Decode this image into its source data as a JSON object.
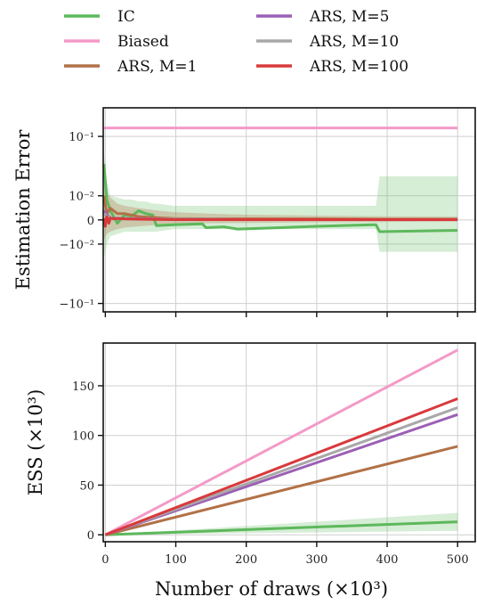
{
  "legend": [
    {
      "label": "IC",
      "color": "#5db85b"
    },
    {
      "label": "Biased",
      "color": "#f39ac7"
    },
    {
      "label": "ARS, M=1",
      "color": "#b27148"
    },
    {
      "label": "ARS, M=5",
      "color": "#9b5fb5"
    },
    {
      "label": "ARS, M=10",
      "color": "#a8a8a8"
    },
    {
      "label": "ARS, M=100",
      "color": "#d9393c"
    }
  ],
  "chart_data": [
    {
      "type": "line",
      "ylabel": "Estimation Error",
      "yscale": "symlog",
      "yticks": [
        {
          "value": 0.1,
          "label": "10⁻¹"
        },
        {
          "value": 0.01,
          "label": "10⁻²"
        },
        {
          "value": 0,
          "label": "0"
        },
        {
          "value": -0.01,
          "label": "−10⁻²"
        },
        {
          "value": -0.1,
          "label": "−10⁻¹"
        }
      ],
      "xlim": [
        0,
        525
      ],
      "grid": true,
      "series": [
        {
          "name": "IC",
          "x": [
            1,
            5,
            10,
            20,
            30,
            40,
            50,
            60,
            70,
            75,
            100,
            140,
            145,
            170,
            190,
            250,
            300,
            380,
            385,
            390,
            500
          ],
          "y": [
            0.04,
            0.008,
            0.003,
            -0.001,
            0.0015,
            0.0012,
            0.003,
            0.002,
            0.0015,
            -0.0018,
            -0.0015,
            -0.0012,
            -0.0025,
            -0.0022,
            -0.003,
            -0.0025,
            -0.002,
            -0.0015,
            -0.0015,
            -0.004,
            -0.0035
          ],
          "band_low": [
            -0.02,
            -0.01,
            -0.006,
            -0.005,
            -0.004,
            -0.004,
            -0.004,
            -0.004,
            -0.004,
            -0.004,
            -0.003,
            -0.003,
            -0.003,
            -0.003,
            -0.003,
            -0.003,
            -0.003,
            -0.003,
            -0.003,
            -0.015,
            -0.015
          ],
          "band_high": [
            0.06,
            0.02,
            0.01,
            0.009,
            0.008,
            0.008,
            0.007,
            0.007,
            0.006,
            0.006,
            0.005,
            0.005,
            0.005,
            0.005,
            0.005,
            0.005,
            0.005,
            0.005,
            0.005,
            0.025,
            0.025
          ]
        },
        {
          "name": "Biased",
          "x": [
            0,
            500
          ],
          "y": [
            0.13,
            0.13
          ]
        },
        {
          "name": "ARS, M=1",
          "x": [
            1,
            5,
            10,
            20,
            30,
            50,
            80,
            100,
            150,
            200,
            300,
            400,
            500
          ],
          "y": [
            0.01,
            0.002,
            0.004,
            0.002,
            0.002,
            0.001,
            0.0006,
            0.0004,
            0.0003,
            0.0003,
            0.0003,
            0.0002,
            0.0002
          ],
          "band_low": [
            -0.008,
            -0.005,
            -0.004,
            -0.003,
            -0.0025,
            -0.002,
            -0.0015,
            -0.0012,
            -0.001,
            -0.0009,
            -0.0007,
            -0.0006,
            -0.0005
          ],
          "band_high": [
            0.02,
            0.012,
            0.009,
            0.006,
            0.005,
            0.004,
            0.003,
            0.0025,
            0.002,
            0.0016,
            0.0013,
            0.0011,
            0.001
          ]
        },
        {
          "name": "ARS, M=5",
          "x": [
            1,
            10,
            30,
            60,
            100,
            200,
            300,
            400,
            500
          ],
          "y": [
            0.003,
            0.0005,
            0.0004,
            0.0003,
            0.0002,
            0.0001,
            0.0001,
            0.0001,
            0.0001
          ]
        },
        {
          "name": "ARS, M=10",
          "x": [
            1,
            10,
            30,
            60,
            100,
            200,
            300,
            400,
            500
          ],
          "y": [
            0.002,
            0.0003,
            0.0003,
            0.0002,
            0.0002,
            0.0001,
            0.0001,
            0.0001,
            0.0001
          ]
        },
        {
          "name": "ARS, M=100",
          "x": [
            1,
            3,
            5,
            8,
            10,
            15,
            20,
            30,
            50,
            100,
            200,
            300,
            400,
            500
          ],
          "y": [
            0.0005,
            -0.002,
            0.001,
            -0.001,
            0.0006,
            0.0003,
            0.0004,
            0.0003,
            0.0002,
            0.0001,
            0.0001,
            0.0001,
            0.0001,
            0.0001
          ]
        }
      ]
    },
    {
      "type": "line",
      "ylabel": "ESS (×10³)",
      "xlabel": "Number of draws (×10³)",
      "xlim": [
        -3,
        525
      ],
      "ylim": [
        -7,
        193
      ],
      "xticks": [
        0,
        100,
        200,
        300,
        400,
        500
      ],
      "yticks": [
        0,
        50,
        100,
        150
      ],
      "grid": true,
      "series": [
        {
          "name": "IC",
          "x": [
            0,
            500
          ],
          "y": [
            0,
            13
          ],
          "band_low": [
            0,
            4
          ],
          "band_high": [
            0,
            22
          ]
        },
        {
          "name": "Biased",
          "x": [
            0,
            500
          ],
          "y": [
            0,
            186
          ]
        },
        {
          "name": "ARS, M=1",
          "x": [
            0,
            500
          ],
          "y": [
            0,
            89
          ]
        },
        {
          "name": "ARS, M=5",
          "x": [
            0,
            500
          ],
          "y": [
            0,
            121
          ]
        },
        {
          "name": "ARS, M=10",
          "x": [
            0,
            500
          ],
          "y": [
            0,
            128
          ]
        },
        {
          "name": "ARS, M=100",
          "x": [
            0,
            500
          ],
          "y": [
            0,
            137
          ]
        }
      ]
    }
  ]
}
